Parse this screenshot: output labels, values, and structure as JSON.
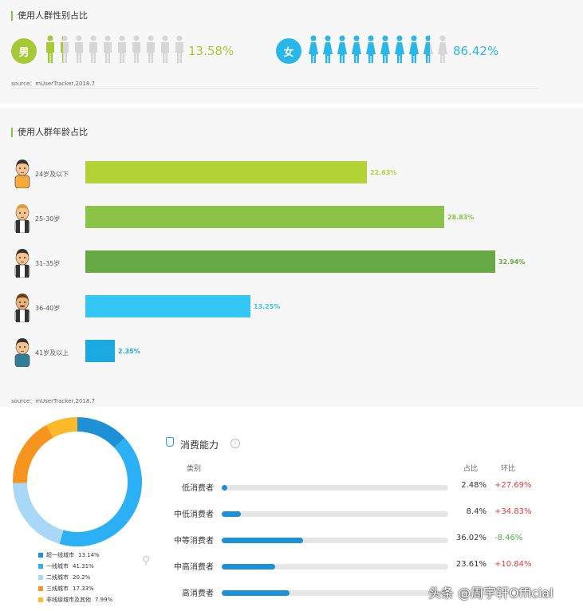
{
  "gender": {
    "title": "使用人群性别占比",
    "male": {
      "badge": "男",
      "percent": "13.58%",
      "color": "#a6c936",
      "share": 0.1358
    },
    "female": {
      "badge": "女",
      "percent": "86.42%",
      "color": "#29b6e8",
      "share": 0.8642
    },
    "source": "source：mUserTracker,2018.7"
  },
  "age": {
    "title": "使用人群年龄占比",
    "source": "source：mUserTracker,2018.7"
  },
  "consumption": {
    "title": "消费能力",
    "col_category": "类别",
    "col_share": "占比",
    "col_change": "环比",
    "positive_color": "#e63a3a",
    "negative_color": "#4caf50"
  },
  "watermark": "头条 @周宇轩Official",
  "chart_data": [
    {
      "type": "bar",
      "title": "使用人群年龄占比",
      "orientation": "horizontal",
      "categories": [
        "24岁及以下",
        "25-30岁",
        "31-35岁",
        "36-40岁",
        "41岁及以上"
      ],
      "values": [
        22.63,
        28.83,
        32.94,
        13.25,
        2.35
      ],
      "labels": [
        "22.63%",
        "28.83%",
        "32.94%",
        "13.25%",
        "2.35%"
      ],
      "colors": [
        "#b2d235",
        "#8bc34a",
        "#66a844",
        "#34c6f4",
        "#1ca8e0"
      ],
      "xlim": [
        0,
        35
      ]
    },
    {
      "type": "pie",
      "donut": true,
      "categories": [
        "超一线城市",
        "一线城市",
        "二线城市",
        "三线城市",
        "非线级城市及其他"
      ],
      "values": [
        13.14,
        41.31,
        20.2,
        17.33,
        7.99
      ],
      "labels": [
        "13.14%",
        "41.31%",
        "20.2%",
        "17.33%",
        "7.99%"
      ],
      "colors": [
        "#1e90d6",
        "#2bb0f5",
        "#a8d8f5",
        "#f7941d",
        "#fbb829"
      ],
      "legend": "bottom"
    },
    {
      "type": "bar",
      "title": "消费能力",
      "orientation": "horizontal",
      "categories": [
        "低消费者",
        "中低消费者",
        "中等消费者",
        "中高消费者",
        "高消费者"
      ],
      "values": [
        2.48,
        8.4,
        36.02,
        23.61,
        null
      ],
      "share_labels": [
        "2.48%",
        "8.4%",
        "36.02%",
        "23.61%",
        ""
      ],
      "change_labels": [
        "+27.69%",
        "+34.83%",
        "-8.46%",
        "+10.84%",
        ""
      ],
      "change_values": [
        27.69,
        34.83,
        -8.46,
        10.84,
        null
      ],
      "xlim": [
        0,
        100
      ]
    }
  ]
}
